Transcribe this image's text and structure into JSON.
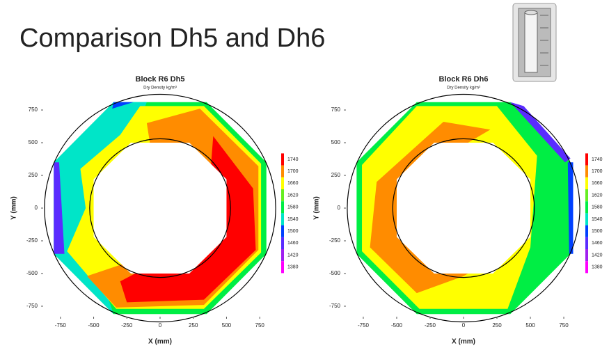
{
  "title": "Comparison Dh5 and Dh6",
  "chart_data": [
    {
      "type": "contour",
      "title": "Block R6 Dh5",
      "subtitle": "Dry Density kg/m³",
      "x_label": "X (mm)",
      "y_label": "Y (mm)",
      "xlim": [
        -880,
        880
      ],
      "ylim": [
        -830,
        830
      ],
      "xticks": [
        -750,
        -500,
        -250,
        0,
        250,
        500,
        750
      ],
      "yticks": [
        -750,
        -500,
        -250,
        0,
        250,
        500,
        750
      ],
      "colorbar": {
        "ticks": [
          1740,
          1700,
          1660,
          1620,
          1580,
          1540,
          1500,
          1460,
          1420,
          1380
        ],
        "colors": [
          "#ff0000",
          "#ff8c00",
          "#ffff00",
          "#66ee22",
          "#00ee44",
          "#00e5c8",
          "#0040ff",
          "#5a2cff",
          "#a020f0",
          "#ff00ff"
        ]
      },
      "zones": [
        {
          "level": 1580,
          "points": [
            [
              -350,
              810
            ],
            [
              350,
              810
            ],
            [
              800,
              350
            ],
            [
              800,
              -350
            ],
            [
              350,
              -810
            ],
            [
              -350,
              -810
            ],
            [
              -800,
              -350
            ],
            [
              -800,
              350
            ]
          ]
        },
        {
          "level": 1540,
          "points": [
            [
              -350,
              810
            ],
            [
              -100,
              810
            ],
            [
              -300,
              300
            ],
            [
              -500,
              -200
            ],
            [
              -420,
              -600
            ],
            [
              -350,
              -810
            ],
            [
              -800,
              -350
            ],
            [
              -800,
              350
            ]
          ]
        },
        {
          "level": 1660,
          "points": [
            [
              -150,
              780
            ],
            [
              330,
              780
            ],
            [
              760,
              340
            ],
            [
              760,
              -340
            ],
            [
              330,
              -770
            ],
            [
              -330,
              -770
            ],
            [
              -700,
              -330
            ],
            [
              -560,
              0
            ],
            [
              -600,
              300
            ],
            [
              -300,
              560
            ]
          ]
        },
        {
          "level": 1700,
          "points": [
            [
              -100,
              650
            ],
            [
              300,
              760
            ],
            [
              740,
              320
            ],
            [
              740,
              -320
            ],
            [
              330,
              -740
            ],
            [
              -330,
              -760
            ],
            [
              -550,
              -520
            ],
            [
              -200,
              -400
            ],
            [
              0,
              0
            ]
          ]
        },
        {
          "level": 1740,
          "points": [
            [
              400,
              550
            ],
            [
              700,
              150
            ],
            [
              720,
              -320
            ],
            [
              330,
              -700
            ],
            [
              -250,
              -720
            ],
            [
              -300,
              -560
            ],
            [
              0,
              -400
            ],
            [
              350,
              -100
            ]
          ]
        },
        {
          "level": 1460,
          "points": [
            [
              -800,
              350
            ],
            [
              -760,
              350
            ],
            [
              -720,
              -350
            ],
            [
              -800,
              -350
            ]
          ]
        },
        {
          "level": 1500,
          "points": [
            [
              -350,
              810
            ],
            [
              -200,
              810
            ],
            [
              -360,
              760
            ]
          ]
        }
      ],
      "hole": [
        [
          -220,
          500
        ],
        [
          220,
          500
        ],
        [
          500,
          220
        ],
        [
          500,
          -220
        ],
        [
          220,
          -500
        ],
        [
          -220,
          -500
        ],
        [
          -500,
          -220
        ],
        [
          -500,
          220
        ]
      ],
      "circles": [
        870,
        530
      ]
    },
    {
      "type": "contour",
      "title": "Block R6 Dh6",
      "subtitle": "Dry Density kg/m³",
      "x_label": "X (mm)",
      "y_label": "Y (mm)",
      "xlim": [
        -880,
        880
      ],
      "ylim": [
        -830,
        830
      ],
      "xticks": [
        -750,
        -500,
        -250,
        0,
        250,
        500,
        750
      ],
      "yticks": [
        -750,
        -500,
        -250,
        0,
        250,
        500,
        750
      ],
      "colorbar": {
        "ticks": [
          1740,
          1700,
          1660,
          1620,
          1580,
          1540,
          1500,
          1460,
          1420,
          1380
        ],
        "colors": [
          "#ff0000",
          "#ff8c00",
          "#ffff00",
          "#66ee22",
          "#00ee44",
          "#00e5c8",
          "#0040ff",
          "#5a2cff",
          "#a020f0",
          "#ff00ff"
        ]
      },
      "zones": [
        {
          "level": 1580,
          "points": [
            [
              -350,
              810
            ],
            [
              350,
              810
            ],
            [
              800,
              350
            ],
            [
              800,
              -350
            ],
            [
              350,
              -810
            ],
            [
              -350,
              -810
            ],
            [
              -800,
              -350
            ],
            [
              -800,
              350
            ]
          ]
        },
        {
          "level": 1660,
          "points": [
            [
              -350,
              780
            ],
            [
              250,
              780
            ],
            [
              550,
              400
            ],
            [
              500,
              -300
            ],
            [
              330,
              -770
            ],
            [
              -330,
              -770
            ],
            [
              -760,
              -330
            ],
            [
              -760,
              330
            ]
          ]
        },
        {
          "level": 1700,
          "points": [
            [
              -150,
              660
            ],
            [
              200,
              600
            ],
            [
              -300,
              300
            ],
            [
              -450,
              0
            ],
            [
              -300,
              -350
            ],
            [
              200,
              -400
            ],
            [
              0,
              -520
            ],
            [
              -350,
              -650
            ],
            [
              -700,
              -300
            ],
            [
              -650,
              200
            ]
          ]
        },
        {
          "level": 1500,
          "points": [
            [
              780,
              350
            ],
            [
              820,
              350
            ],
            [
              820,
              -350
            ],
            [
              790,
              -350
            ]
          ]
        },
        {
          "level": 1460,
          "points": [
            [
              350,
              810
            ],
            [
              450,
              780
            ],
            [
              800,
              380
            ],
            [
              760,
              350
            ]
          ]
        }
      ],
      "hole": [
        [
          -220,
          500
        ],
        [
          220,
          500
        ],
        [
          500,
          220
        ],
        [
          500,
          -220
        ],
        [
          220,
          -500
        ],
        [
          -220,
          -500
        ],
        [
          -500,
          -220
        ],
        [
          -500,
          220
        ]
      ],
      "circles": [
        870,
        530
      ]
    }
  ]
}
